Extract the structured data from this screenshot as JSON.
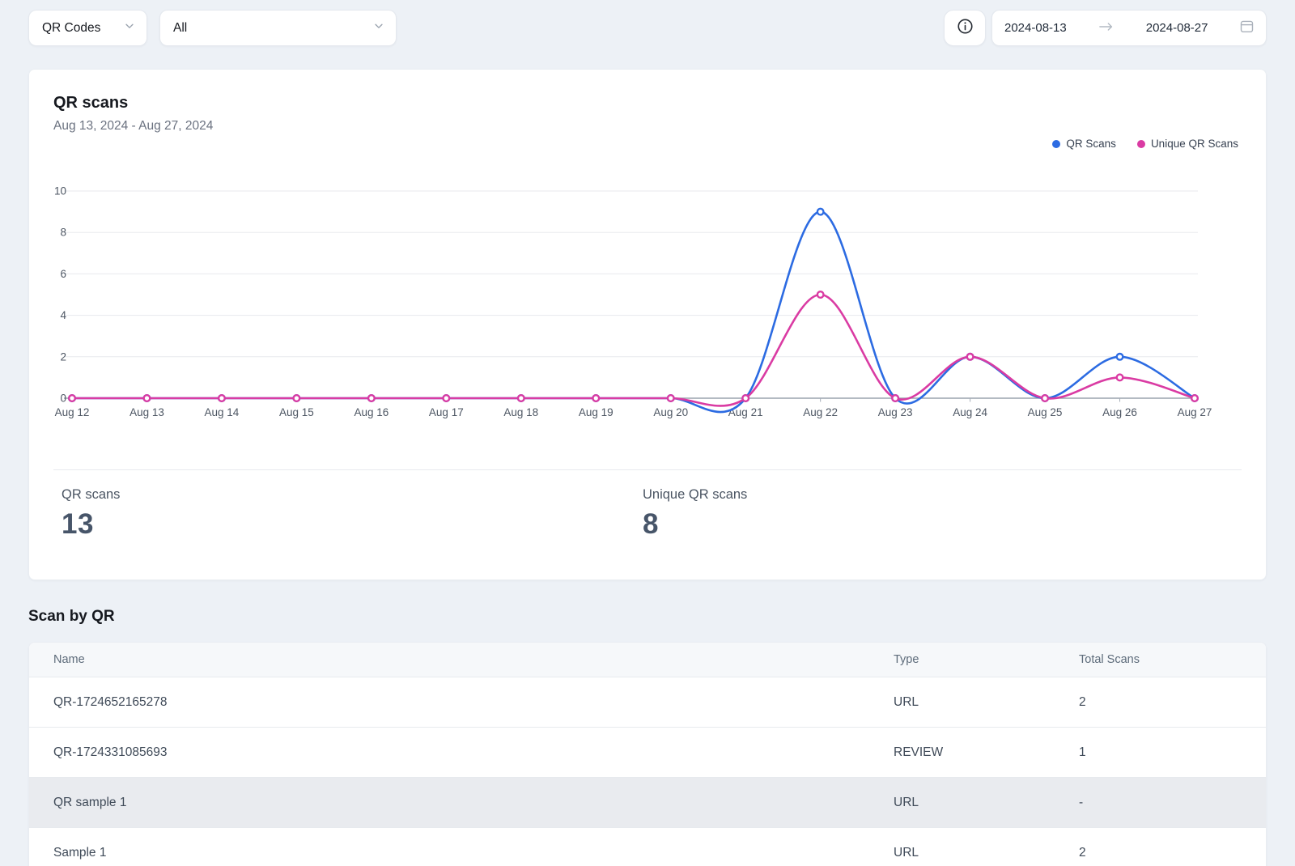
{
  "toolbar": {
    "qr_codes_dropdown": "QR Codes",
    "filter_dropdown": "All",
    "date_range": {
      "start": "2024-08-13",
      "end": "2024-08-27"
    }
  },
  "chart_card": {
    "title": "QR scans",
    "subtitle": "Aug 13, 2024 - Aug 27, 2024",
    "legend": [
      {
        "label": "QR Scans",
        "color": "#2c6be2"
      },
      {
        "label": "Unique QR Scans",
        "color": "#da3ba3"
      }
    ],
    "stats": [
      {
        "label": "QR scans",
        "value": "13"
      },
      {
        "label": "Unique QR scans",
        "value": "8"
      }
    ]
  },
  "chart_data": {
    "type": "line",
    "title": "QR scans",
    "x": [
      "Aug 12",
      "Aug 13",
      "Aug 14",
      "Aug 15",
      "Aug 16",
      "Aug 17",
      "Aug 18",
      "Aug 19",
      "Aug 20",
      "Aug 21",
      "Aug 22",
      "Aug 23",
      "Aug 24",
      "Aug 25",
      "Aug 26",
      "Aug 27"
    ],
    "series": [
      {
        "name": "QR Scans",
        "color": "#2c6be2",
        "values": [
          0,
          0,
          0,
          0,
          0,
          0,
          0,
          0,
          0,
          0,
          9,
          0,
          2,
          0,
          2,
          0
        ]
      },
      {
        "name": "Unique QR Scans",
        "color": "#da3ba3",
        "values": [
          0,
          0,
          0,
          0,
          0,
          0,
          0,
          0,
          0,
          0,
          5,
          0,
          2,
          0,
          1,
          0
        ]
      }
    ],
    "ylim": [
      0,
      10
    ],
    "yticks": [
      0,
      2,
      4,
      6,
      8,
      10
    ],
    "grid": true,
    "legend_position": "top-right",
    "marker": "open-circle"
  },
  "table_section": {
    "heading": "Scan by QR",
    "columns": [
      "Name",
      "Type",
      "Total Scans"
    ],
    "rows": [
      {
        "name": "QR-1724652165278",
        "type": "URL",
        "total_scans": "2",
        "highlighted": false
      },
      {
        "name": "QR-1724331085693",
        "type": "REVIEW",
        "total_scans": "1",
        "highlighted": false
      },
      {
        "name": "QR sample 1",
        "type": "URL",
        "total_scans": "-",
        "highlighted": true
      },
      {
        "name": "Sample 1",
        "type": "URL",
        "total_scans": "2",
        "highlighted": false
      }
    ]
  }
}
